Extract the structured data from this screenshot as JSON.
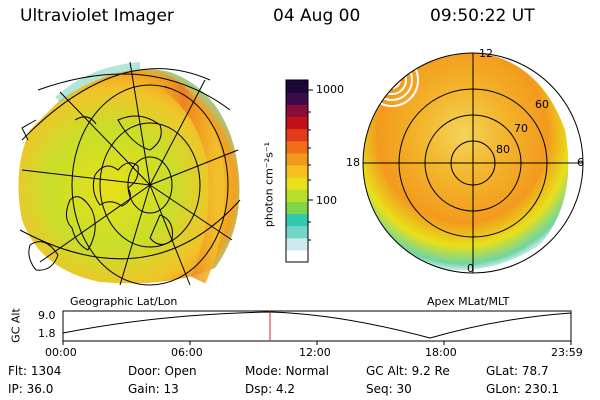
{
  "header": {
    "instrument": "Ultraviolet Imager",
    "date": "04 Aug 00",
    "time": "09:50:22 UT"
  },
  "colorbar": {
    "label": "photon cm⁻²s⁻¹",
    "ticks": [
      "1000",
      "100"
    ],
    "colors": [
      "#ffffff",
      "#cfe9ef",
      "#6fd6c9",
      "#33c7b0",
      "#7fd64a",
      "#b8e02a",
      "#e8e01a",
      "#f4c020",
      "#f39a1e",
      "#ee6e1a",
      "#e33a18",
      "#c0101a",
      "#8a0c38",
      "#3a0a4a",
      "#1a0638"
    ]
  },
  "map_left": {
    "caption": "Geographic Lat/Lon"
  },
  "map_right": {
    "caption": "Apex MLat/MLT",
    "mlt_labels": [
      "12",
      "18",
      "6",
      "0"
    ],
    "lat_labels": [
      "60",
      "70",
      "80"
    ]
  },
  "altitude_plot": {
    "ylabel": "GC Alt",
    "yticks": [
      "9.0",
      "1.8"
    ],
    "xticks": [
      "00:00",
      "06:00",
      "12:00",
      "18:00",
      "23:59"
    ],
    "current_time_color": "#e02020"
  },
  "info": {
    "row1": [
      {
        "label": "Flt:",
        "value": "1304"
      },
      {
        "label": "Door:",
        "value": "Open"
      },
      {
        "label": "Mode:",
        "value": "Normal"
      },
      {
        "label": "GC Alt:",
        "value": "9.2 Re"
      },
      {
        "label": "GLat:",
        "value": "78.7"
      }
    ],
    "row2": [
      {
        "label": "IP:",
        "value": "36.0"
      },
      {
        "label": "Gain:",
        "value": "13"
      },
      {
        "label": "Dsp:",
        "value": "4.2"
      },
      {
        "label": "Seq:",
        "value": "30"
      },
      {
        "label": "GLon:",
        "value": "230.1"
      }
    ]
  }
}
